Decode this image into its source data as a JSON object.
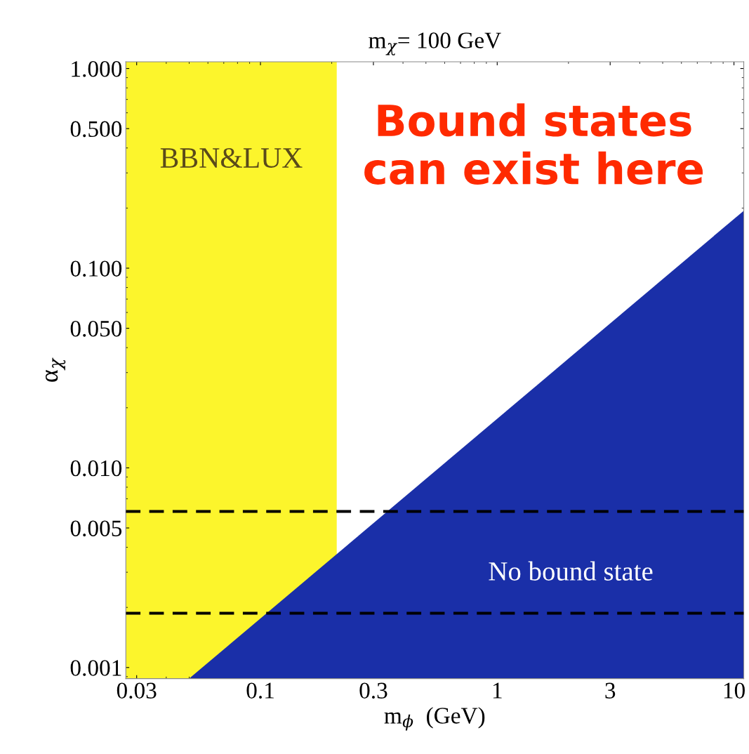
{
  "chart_data": {
    "type": "area",
    "title": "m$_{χ}$= 100 GeV",
    "xlabel": "m$_{ϕ}$  (GeV)",
    "ylabel": "α$_{χ}$",
    "log": "xy",
    "xlim": [
      0.027,
      11
    ],
    "ylim": [
      0.00088,
      1.08
    ],
    "xticks": [
      0.03,
      0.1,
      0.3,
      1,
      3,
      10
    ],
    "yticks": [
      {
        "value": 1,
        "label": "1.000"
      },
      {
        "value": 0.5,
        "label": "0.500"
      },
      {
        "value": 0.1,
        "label": "0.100"
      },
      {
        "value": 0.05,
        "label": "0.050"
      },
      {
        "value": 0.01,
        "label": "0.010"
      },
      {
        "value": 0.005,
        "label": "0.005"
      },
      {
        "value": 0.001,
        "label": "0.001"
      }
    ],
    "series": [
      {
        "color": "#1a2fa8",
        "x": [
          0.05,
          11
        ],
        "values": [
          0.00088,
          0.194
        ]
      }
    ],
    "bands": [
      {
        "axis": "x",
        "from": 0.027,
        "to": 0.21,
        "label": "BBN&LUX",
        "color": "#fcf52c"
      }
    ],
    "ref_lines": [
      {
        "axis": "y",
        "value": 0.00605,
        "color": "#000000",
        "line_style": "dashed"
      },
      {
        "axis": "y",
        "value": 0.00187,
        "color": "#000000",
        "line_style": "dashed"
      }
    ],
    "annotations": [
      "Bound states\ncan exist here",
      "No bound state"
    ],
    "grid": false
  }
}
